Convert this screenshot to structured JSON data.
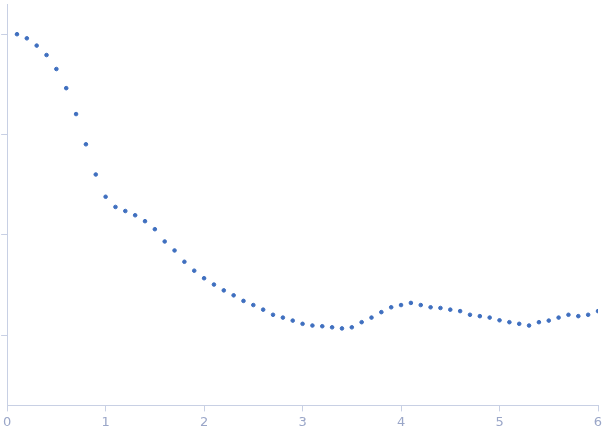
{
  "chart_data": {
    "type": "scatter",
    "log": "y",
    "grid": false,
    "tick_labels": "x",
    "color": "#3f6fbf",
    "marker": "circle",
    "x": [
      0.1,
      0.2,
      0.3,
      0.4,
      0.5,
      0.6,
      0.7,
      0.8,
      0.9,
      1.0,
      1.1,
      1.2,
      1.3,
      1.4,
      1.5,
      1.6,
      1.7,
      1.8,
      1.9,
      2.0,
      2.1,
      2.2,
      2.3,
      2.4,
      2.5,
      2.6,
      2.7,
      2.8,
      2.9,
      3.0,
      3.1,
      3.2,
      3.3,
      3.4,
      3.5,
      3.6,
      3.7,
      3.8,
      3.9,
      4.0,
      4.1,
      4.2,
      4.3,
      4.4,
      4.5,
      4.6,
      4.7,
      4.8,
      4.9,
      5.0,
      5.1,
      5.2,
      5.3,
      5.4,
      5.5,
      5.6,
      5.7,
      5.8,
      5.9,
      6.0
    ],
    "values": [
      1.0,
      0.91,
      0.77,
      0.62,
      0.45,
      0.29,
      0.16,
      0.08,
      0.04,
      0.024,
      0.019,
      0.0173,
      0.0157,
      0.0137,
      0.0114,
      0.0086,
      0.007,
      0.0054,
      0.0044,
      0.0037,
      0.0032,
      0.0028,
      0.0025,
      0.0022,
      0.002,
      0.0018,
      0.0016,
      0.0015,
      0.0014,
      0.0013,
      0.00125,
      0.00123,
      0.0012,
      0.00117,
      0.0012,
      0.00135,
      0.0015,
      0.0017,
      0.0019,
      0.002,
      0.0021,
      0.002,
      0.0019,
      0.00187,
      0.0018,
      0.00174,
      0.0016,
      0.00155,
      0.0015,
      0.00141,
      0.00135,
      0.0013,
      0.00125,
      0.00135,
      0.0014,
      0.0015,
      0.0016,
      0.00155,
      0.0016,
      0.00174
    ],
    "xlim": [
      0,
      6
    ],
    "xticks": [
      0,
      1,
      2,
      3,
      4,
      5,
      6
    ],
    "ylim": [
      0.0002,
      2
    ],
    "yticks": [
      0.001,
      0.01,
      0.1,
      1
    ]
  }
}
